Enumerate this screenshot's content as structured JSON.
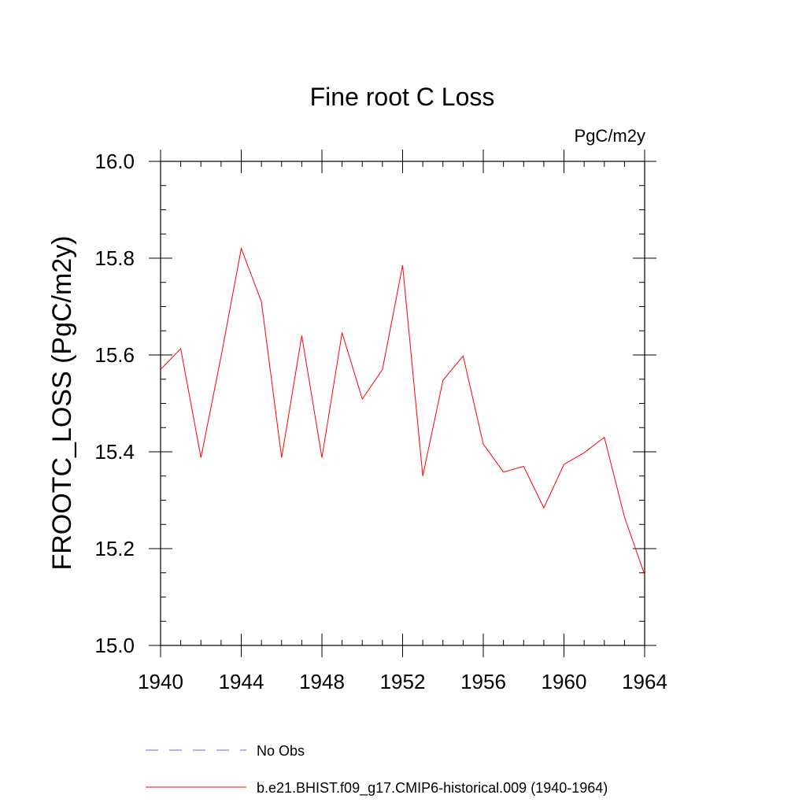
{
  "chart_data": {
    "type": "line",
    "title": "Fine root C Loss",
    "units": "PgC/m2y",
    "ylabel": "FROOTC_LOSS  (PgC/m2y)",
    "xlabel": "",
    "xlim": [
      1940,
      1964
    ],
    "ylim": [
      15.0,
      16.0
    ],
    "xticks": [
      "1940",
      "1944",
      "1948",
      "1952",
      "1956",
      "1960",
      "1964"
    ],
    "yticks": [
      "15.0",
      "15.2",
      "15.4",
      "15.6",
      "15.8",
      "16.0"
    ],
    "grid": false,
    "legend_placement": "bottom",
    "legend": [
      {
        "label": "No Obs",
        "style": "dashed",
        "color": "#6a6ad0"
      },
      {
        "label": "b.e21.BHIST.f09_g17.CMIP6-historical.009 (1940-1964)",
        "style": "solid",
        "color": "#ff0000"
      }
    ],
    "series": [
      {
        "name": "b.e21.BHIST.f09_g17.CMIP6-historical.009 (1940-1964)",
        "color": "#ff0000",
        "x": [
          1940,
          1941,
          1942,
          1943,
          1944,
          1945,
          1946,
          1947,
          1948,
          1949,
          1950,
          1951,
          1952,
          1953,
          1954,
          1955,
          1956,
          1957,
          1958,
          1959,
          1960,
          1961,
          1962,
          1963,
          1964
        ],
        "values": [
          15.57,
          15.613,
          15.388,
          15.597,
          15.82,
          15.71,
          15.388,
          15.64,
          15.388,
          15.646,
          15.509,
          15.57,
          15.785,
          15.35,
          15.548,
          15.598,
          15.416,
          15.358,
          15.37,
          15.284,
          15.374,
          15.398,
          15.43,
          15.265,
          15.146
        ]
      }
    ]
  }
}
